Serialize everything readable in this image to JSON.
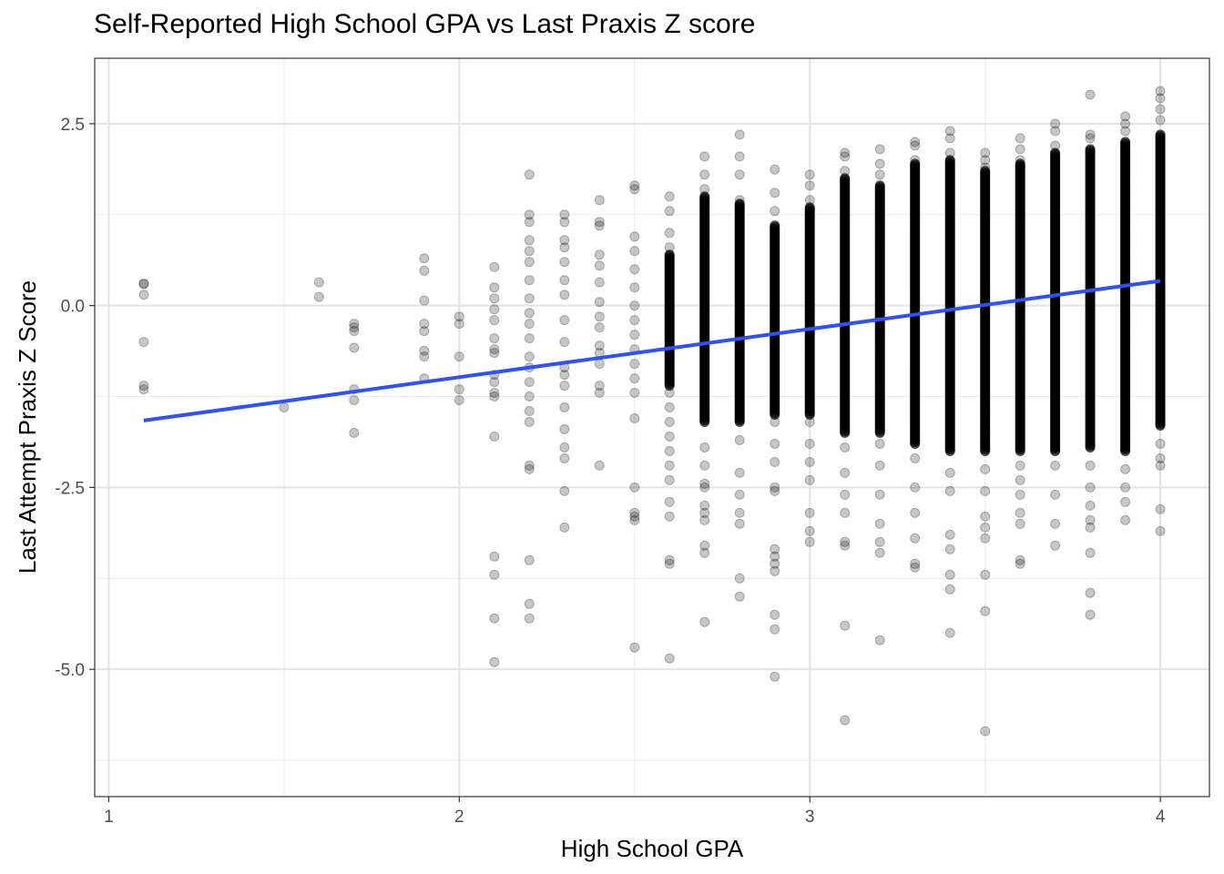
{
  "chart_data": {
    "type": "scatter",
    "title": "Self-Reported High School GPA vs Last Praxis Z score",
    "xlabel": "High School GPA",
    "ylabel": "Last Attempt Praxis Z Score",
    "xlim": [
      0.96,
      4.14
    ],
    "ylim": [
      -6.75,
      3.4
    ],
    "x_ticks": [
      {
        "value": 1,
        "label": "1"
      },
      {
        "value": 2,
        "label": "2"
      },
      {
        "value": 3,
        "label": "3"
      },
      {
        "value": 4,
        "label": "4"
      }
    ],
    "y_ticks": [
      {
        "value": 2.5,
        "label": "2.5"
      },
      {
        "value": 0,
        "label": "0.0"
      },
      {
        "value": -2.5,
        "label": "-2.5"
      },
      {
        "value": -5,
        "label": "-5.0"
      }
    ],
    "grid": true,
    "point_color": "#000000",
    "point_alpha": 0.22,
    "trend_line": {
      "color": "#3050f8",
      "x": [
        1.1,
        4.0
      ],
      "y": [
        -1.58,
        0.34
      ]
    },
    "points_by_gpa": [
      {
        "x": 1.1,
        "y": [
          0.3,
          0.3,
          0.15,
          -0.5,
          -1.1,
          -1.15
        ]
      },
      {
        "x": 1.5,
        "y": [
          -1.4
        ]
      },
      {
        "x": 1.6,
        "y": [
          0.32,
          0.12
        ]
      },
      {
        "x": 1.7,
        "y": [
          -0.25,
          -0.3,
          -0.35,
          -0.58,
          -1.15,
          -1.3,
          -1.75
        ]
      },
      {
        "x": 1.9,
        "y": [
          0.65,
          0.48,
          0.07,
          -0.25,
          -0.35,
          -0.62,
          -0.7,
          -1.0
        ]
      },
      {
        "x": 2.0,
        "y": [
          -0.15,
          -0.25,
          -0.7,
          -1.15,
          -1.3
        ]
      },
      {
        "x": 2.1,
        "y": [
          0.53,
          0.25,
          0.1,
          -0.05,
          -0.2,
          -0.45,
          -0.6,
          -0.65,
          -0.95,
          -1.05,
          -1.2,
          -1.25,
          -1.8,
          -3.45,
          -3.7,
          -4.3,
          -4.9
        ]
      },
      {
        "x": 2.2,
        "y": [
          1.8,
          1.25,
          1.15,
          0.9,
          0.75,
          0.6,
          0.35,
          0.1,
          -0.1,
          -0.25,
          -0.45,
          -0.7,
          -0.85,
          -1.05,
          -1.25,
          -1.45,
          -1.6,
          -2.2,
          -2.25,
          -3.5,
          -4.1,
          -4.3
        ]
      },
      {
        "x": 2.3,
        "y": [
          1.25,
          1.15,
          0.9,
          0.8,
          0.6,
          0.35,
          0.15,
          -0.2,
          -0.5,
          -0.85,
          -0.95,
          -1.1,
          -1.4,
          -1.7,
          -1.95,
          -2.1,
          -2.55,
          -3.05
        ]
      },
      {
        "x": 2.4,
        "y": [
          1.45,
          1.15,
          1.1,
          0.7,
          0.55,
          0.32,
          0.05,
          -0.15,
          -0.3,
          -0.55,
          -0.65,
          -0.8,
          -1.1,
          -1.2,
          -2.2
        ]
      },
      {
        "x": 2.5,
        "y": [
          1.65,
          1.6,
          0.95,
          0.75,
          0.5,
          0.25,
          0.0,
          -0.2,
          -0.4,
          -0.6,
          -0.8,
          -1.0,
          -1.2,
          -1.55,
          -2.5,
          -2.85,
          -2.9,
          -2.95,
          -4.7
        ]
      },
      {
        "x": 2.6,
        "y": [
          1.5,
          1.3,
          1.0,
          0.8,
          0.6,
          0.4,
          0.2,
          0.0,
          -0.2,
          -0.4,
          -0.6,
          -0.8,
          -1.0,
          -1.2,
          -1.4,
          -1.6,
          -1.8,
          -2.0,
          -2.2,
          -2.4,
          -2.7,
          -2.9,
          -3.5,
          -3.55,
          -4.85
        ]
      },
      {
        "x": 2.7,
        "y": [
          2.05,
          1.8,
          1.6,
          -1.95,
          -2.2,
          -2.45,
          -2.5,
          -2.75,
          -2.85,
          -2.95,
          -3.3,
          -3.4,
          -4.35
        ]
      },
      {
        "x": 2.8,
        "y": [
          2.35,
          2.05,
          1.8,
          1.45,
          -1.85,
          -2.3,
          -2.6,
          -2.85,
          -3.0,
          -3.75,
          -4.0
        ]
      },
      {
        "x": 2.9,
        "y": [
          1.87,
          1.55,
          1.3,
          -1.6,
          -1.9,
          -2.15,
          -2.5,
          -2.55,
          -3.35,
          -3.45,
          -3.55,
          -3.65,
          -4.25,
          -4.45,
          -5.1
        ]
      },
      {
        "x": 3.0,
        "y": [
          1.8,
          1.65,
          1.45,
          -1.6,
          -1.9,
          -2.15,
          -2.4,
          -2.85,
          -3.1,
          -3.25
        ]
      },
      {
        "x": 3.1,
        "y": [
          2.1,
          2.05,
          1.85,
          -1.95,
          -2.3,
          -2.6,
          -2.85,
          -3.25,
          -3.3,
          -4.4,
          -5.7
        ]
      },
      {
        "x": 3.2,
        "y": [
          2.15,
          1.95,
          1.8,
          -1.9,
          -2.2,
          -2.6,
          -3.0,
          -3.25,
          -3.4,
          -4.6
        ]
      },
      {
        "x": 3.3,
        "y": [
          2.25,
          2.2,
          2.0,
          -2.1,
          -2.5,
          -2.85,
          -3.2,
          -3.55,
          -3.6
        ]
      },
      {
        "x": 3.4,
        "y": [
          2.4,
          2.3,
          2.1,
          -2.3,
          -2.55,
          -3.15,
          -3.35,
          -3.7,
          -3.9,
          -4.5
        ]
      },
      {
        "x": 3.5,
        "y": [
          2.1,
          2.0,
          1.9,
          -2.25,
          -2.55,
          -2.9,
          -3.05,
          -3.2,
          -3.7,
          -4.2,
          -5.85
        ]
      },
      {
        "x": 3.6,
        "y": [
          2.3,
          2.15,
          2.0,
          -2.2,
          -2.4,
          -2.6,
          -2.85,
          -3.0,
          -3.5,
          -3.55
        ]
      },
      {
        "x": 3.7,
        "y": [
          2.5,
          2.4,
          2.2,
          -2.2,
          -2.6,
          -3.0,
          -3.3
        ]
      },
      {
        "x": 3.8,
        "y": [
          2.9,
          2.35,
          2.3,
          -2.2,
          -2.5,
          -2.75,
          -2.95,
          -3.05,
          -3.4,
          -3.95,
          -4.25
        ]
      },
      {
        "x": 3.9,
        "y": [
          2.6,
          2.5,
          2.4,
          -2.25,
          -2.5,
          -2.7,
          -2.95
        ]
      },
      {
        "x": 4.0,
        "y": [
          2.95,
          2.85,
          2.7,
          2.55,
          -1.9,
          -2.1,
          -2.2,
          -2.8,
          -3.1
        ]
      }
    ],
    "dense_bands": [
      {
        "x": 2.6,
        "y_range": [
          -1.1,
          0.7
        ]
      },
      {
        "x": 2.7,
        "y_range": [
          -1.6,
          1.5
        ]
      },
      {
        "x": 2.8,
        "y_range": [
          -1.6,
          1.4
        ]
      },
      {
        "x": 2.9,
        "y_range": [
          -1.5,
          1.1
        ]
      },
      {
        "x": 3.0,
        "y_range": [
          -1.5,
          1.35
        ]
      },
      {
        "x": 3.1,
        "y_range": [
          -1.75,
          1.75
        ]
      },
      {
        "x": 3.2,
        "y_range": [
          -1.75,
          1.65
        ]
      },
      {
        "x": 3.3,
        "y_range": [
          -1.9,
          1.95
        ]
      },
      {
        "x": 3.4,
        "y_range": [
          -2.0,
          2.0
        ]
      },
      {
        "x": 3.5,
        "y_range": [
          -2.0,
          1.85
        ]
      },
      {
        "x": 3.6,
        "y_range": [
          -2.0,
          1.95
        ]
      },
      {
        "x": 3.7,
        "y_range": [
          -2.0,
          2.1
        ]
      },
      {
        "x": 3.8,
        "y_range": [
          -1.95,
          2.15
        ]
      },
      {
        "x": 3.9,
        "y_range": [
          -2.0,
          2.25
        ]
      },
      {
        "x": 4.0,
        "y_range": [
          -1.65,
          2.35
        ]
      }
    ]
  }
}
